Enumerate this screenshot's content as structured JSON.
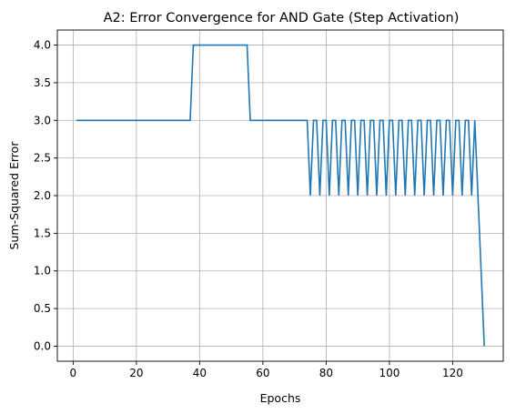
{
  "chart_data": {
    "type": "line",
    "title": "A2: Error Convergence for AND Gate (Step Activation)",
    "xlabel": "Epochs",
    "ylabel": "Sum-Squared Error",
    "xlim": [
      -5,
      136
    ],
    "ylim": [
      -0.2,
      4.2
    ],
    "xticks": [
      0,
      20,
      40,
      60,
      80,
      100,
      120
    ],
    "yticks": [
      0.0,
      0.5,
      1.0,
      1.5,
      2.0,
      2.5,
      3.0,
      3.5,
      4.0
    ],
    "xtick_labels": [
      "0",
      "20",
      "40",
      "60",
      "80",
      "100",
      "120"
    ],
    "ytick_labels": [
      "0.0",
      "0.5",
      "1.0",
      "1.5",
      "2.0",
      "2.5",
      "3.0",
      "3.5",
      "4.0"
    ],
    "grid": true,
    "line_color": "#1f77b4",
    "series": [
      {
        "x": [
          1,
          37,
          38,
          55,
          56,
          74,
          75,
          76,
          77,
          78,
          79,
          80,
          81,
          82,
          83,
          84,
          85,
          86,
          87,
          88,
          89,
          90,
          91,
          92,
          93,
          94,
          95,
          96,
          97,
          98,
          99,
          100,
          101,
          102,
          103,
          104,
          105,
          106,
          107,
          108,
          109,
          110,
          111,
          112,
          113,
          114,
          115,
          116,
          117,
          118,
          119,
          120,
          121,
          122,
          123,
          124,
          125,
          126,
          127,
          128,
          129,
          130
        ],
        "y": [
          3,
          3,
          4,
          4,
          3,
          3,
          2,
          3,
          3,
          2,
          3,
          3,
          2,
          3,
          3,
          2,
          3,
          3,
          2,
          3,
          3,
          2,
          3,
          3,
          2,
          3,
          3,
          2,
          3,
          3,
          2,
          3,
          3,
          2,
          3,
          3,
          2,
          3,
          3,
          2,
          3,
          3,
          2,
          3,
          3,
          2,
          3,
          3,
          2,
          3,
          3,
          2,
          3,
          3,
          2,
          3,
          3,
          2,
          3,
          2,
          1,
          0
        ]
      }
    ]
  }
}
